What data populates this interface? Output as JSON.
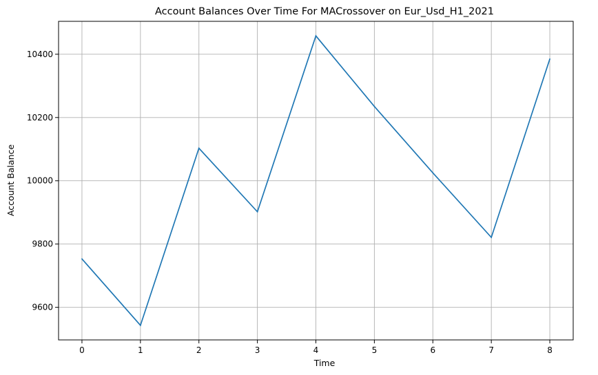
{
  "chart_data": {
    "type": "line",
    "title": "Account Balances Over Time For MACrossover on Eur_Usd_H1_2021",
    "xlabel": "Time",
    "ylabel": "Account Balance",
    "x": [
      0,
      1,
      2,
      3,
      4,
      5,
      6,
      7,
      8
    ],
    "series": [
      {
        "values": [
          9753,
          9543,
          10103,
          9902,
          10458,
          10235,
          10025,
          9821,
          10385
        ],
        "color": "#1f77b4"
      }
    ],
    "xticks": [
      0,
      1,
      2,
      3,
      4,
      5,
      6,
      7,
      8
    ],
    "yticks": [
      9600,
      9800,
      10000,
      10200,
      10400
    ],
    "xlim": [
      -0.4,
      8.4
    ],
    "ylim": [
      9497,
      10504
    ],
    "grid": true
  }
}
